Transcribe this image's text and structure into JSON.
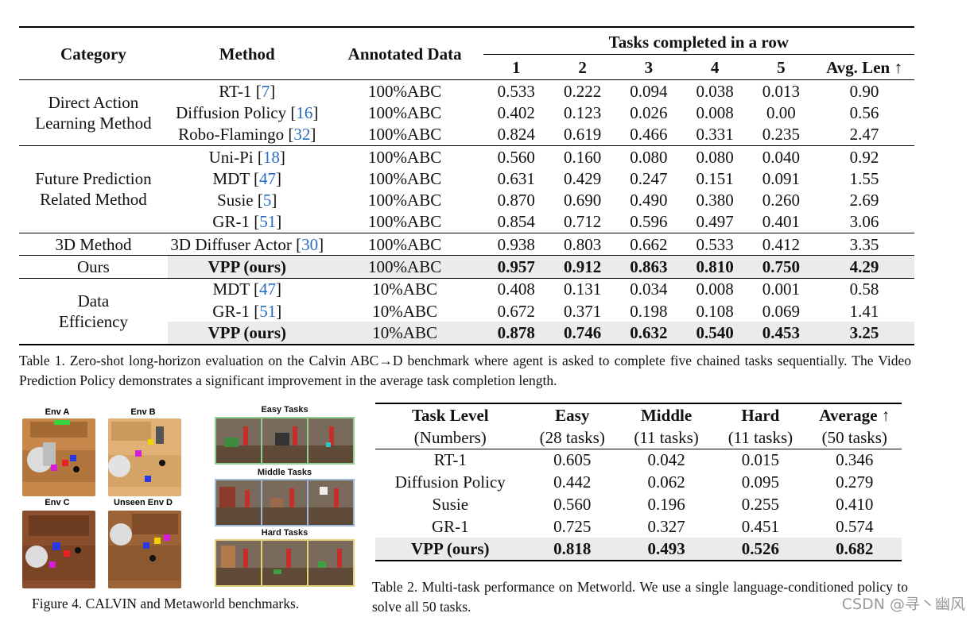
{
  "table1": {
    "header": {
      "category": "Category",
      "method": "Method",
      "annotated": "Annotated Data",
      "group": "Tasks completed in a row",
      "cols": [
        "1",
        "2",
        "3",
        "4",
        "5",
        "Avg. Len ↑"
      ]
    },
    "groups": [
      {
        "category_lines": [
          "Direct Action",
          "Learning Method"
        ],
        "rows": [
          {
            "method": "RT-1",
            "cite": "7",
            "data": "100%ABC",
            "values": [
              "0.533",
              "0.222",
              "0.094",
              "0.038",
              "0.013",
              "0.90"
            ]
          },
          {
            "method": "Diffusion Policy",
            "cite": "16",
            "data": "100%ABC",
            "values": [
              "0.402",
              "0.123",
              "0.026",
              "0.008",
              "0.00",
              "0.56"
            ]
          },
          {
            "method": "Robo-Flamingo",
            "cite": "32",
            "data": "100%ABC",
            "values": [
              "0.824",
              "0.619",
              "0.466",
              "0.331",
              "0.235",
              "2.47"
            ]
          }
        ]
      },
      {
        "category_lines": [
          "Future Prediction",
          "Related Method"
        ],
        "rows": [
          {
            "method": "Uni-Pi",
            "cite": "18",
            "data": "100%ABC",
            "values": [
              "0.560",
              "0.160",
              "0.080",
              "0.080",
              "0.040",
              "0.92"
            ]
          },
          {
            "method": "MDT",
            "cite": "47",
            "data": "100%ABC",
            "values": [
              "0.631",
              "0.429",
              "0.247",
              "0.151",
              "0.091",
              "1.55"
            ]
          },
          {
            "method": "Susie",
            "cite": "5",
            "data": "100%ABC",
            "values": [
              "0.870",
              "0.690",
              "0.490",
              "0.380",
              "0.260",
              "2.69"
            ]
          },
          {
            "method": "GR-1",
            "cite": "51",
            "data": "100%ABC",
            "values": [
              "0.854",
              "0.712",
              "0.596",
              "0.497",
              "0.401",
              "3.06"
            ]
          }
        ]
      },
      {
        "category_lines": [
          "3D Method"
        ],
        "rows": [
          {
            "method": "3D Diffuser Actor",
            "cite": "30",
            "data": "100%ABC",
            "values": [
              "0.938",
              "0.803",
              "0.662",
              "0.533",
              "0.412",
              "3.35"
            ]
          }
        ]
      },
      {
        "category_lines": [
          "Ours"
        ],
        "rows": [
          {
            "method": "VPP (ours)",
            "cite": "",
            "highlight": true,
            "data": "100%ABC",
            "values": [
              "0.957",
              "0.912",
              "0.863",
              "0.810",
              "0.750",
              "4.29"
            ]
          }
        ]
      },
      {
        "category_lines": [
          "Data",
          "Efficiency"
        ],
        "rows": [
          {
            "method": "MDT",
            "cite": "47",
            "data": "10%ABC",
            "values": [
              "0.408",
              "0.131",
              "0.034",
              "0.008",
              "0.001",
              "0.58"
            ]
          },
          {
            "method": "GR-1",
            "cite": "51",
            "data": "10%ABC",
            "values": [
              "0.672",
              "0.371",
              "0.198",
              "0.108",
              "0.069",
              "1.41"
            ]
          },
          {
            "method": "VPP (ours)",
            "cite": "",
            "highlight": true,
            "data": "10%ABC",
            "values": [
              "0.878",
              "0.746",
              "0.632",
              "0.540",
              "0.453",
              "3.25"
            ]
          }
        ]
      }
    ],
    "caption": "Table 1.  Zero-shot long-horizon evaluation on the Calvin ABC→D benchmark where agent is asked to complete five chained tasks sequentially. The Video Prediction Policy demonstrates a significant improvement in the average task completion length."
  },
  "table2": {
    "header": [
      "Task Level",
      "Easy",
      "Middle",
      "Hard",
      "Average ↑"
    ],
    "subheader": [
      "(Numbers)",
      "(28 tasks)",
      "(11 tasks)",
      "(11 tasks)",
      "(50 tasks)"
    ],
    "rows": [
      {
        "method": "RT-1",
        "values": [
          "0.605",
          "0.042",
          "0.015",
          "0.346"
        ]
      },
      {
        "method": "Diffusion Policy",
        "values": [
          "0.442",
          "0.062",
          "0.095",
          "0.279"
        ]
      },
      {
        "method": "Susie",
        "values": [
          "0.560",
          "0.196",
          "0.255",
          "0.410"
        ]
      },
      {
        "method": "GR-1",
        "values": [
          "0.725",
          "0.327",
          "0.451",
          "0.574"
        ]
      },
      {
        "method": "VPP (ours)",
        "highlight": true,
        "values": [
          "0.818",
          "0.493",
          "0.526",
          "0.682"
        ]
      }
    ],
    "caption": "Table 2.  Multi-task performance on Metworld.  We use a single language-conditioned policy to solve all 50 tasks."
  },
  "figure4": {
    "env_labels": [
      "Env A",
      "Env B",
      "Env C",
      "Unseen Env D"
    ],
    "task_labels": [
      "Easy Tasks",
      "Middle Tasks",
      "Hard Tasks"
    ],
    "caption": "Figure 4. CALVIN and Metaworld benchmarks."
  },
  "watermark": "CSDN @寻丶幽风"
}
